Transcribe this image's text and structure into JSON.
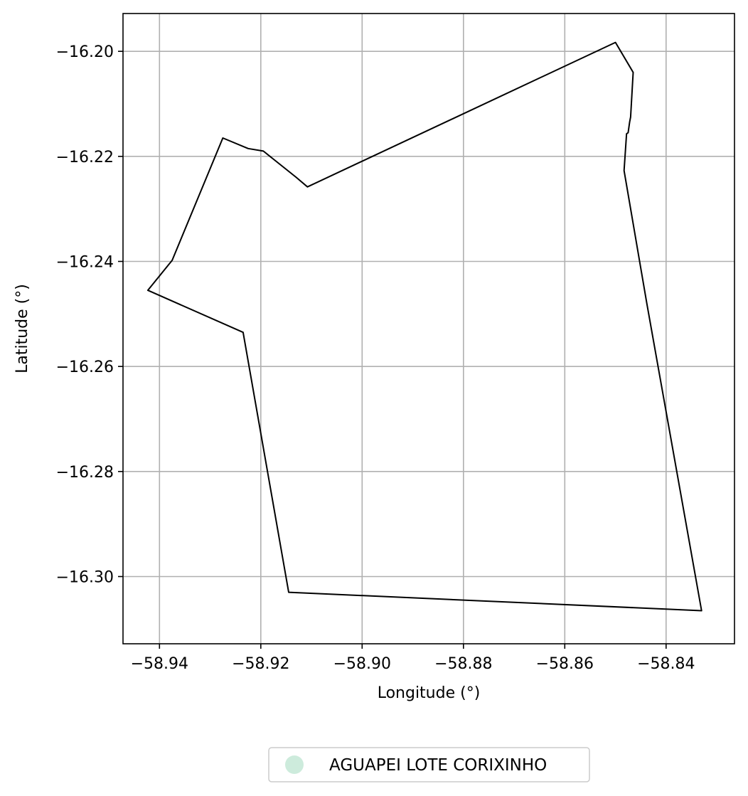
{
  "chart_data": {
    "type": "map",
    "xlabel": "Longitude (°)",
    "ylabel": "Latitude (°)",
    "xlim": [
      -58.9472,
      -58.8265
    ],
    "ylim": [
      -16.3128,
      -16.1928
    ],
    "grid": true,
    "x_ticks": [
      {
        "value": -58.94,
        "label": "−58.94"
      },
      {
        "value": -58.92,
        "label": "−58.92"
      },
      {
        "value": -58.9,
        "label": "−58.90"
      },
      {
        "value": -58.88,
        "label": "−58.88"
      },
      {
        "value": -58.86,
        "label": "−58.86"
      },
      {
        "value": -58.84,
        "label": "−58.84"
      }
    ],
    "y_ticks": [
      {
        "value": -16.2,
        "label": "−16.20"
      },
      {
        "value": -16.22,
        "label": "−16.22"
      },
      {
        "value": -16.24,
        "label": "−16.24"
      },
      {
        "value": -16.26,
        "label": "−16.26"
      },
      {
        "value": -16.28,
        "label": "−16.28"
      },
      {
        "value": -16.3,
        "label": "−16.30"
      }
    ],
    "legend_position": "bottom-center",
    "series": [
      {
        "name": "AGUAPEI LOTE CORIXINHO",
        "legend_color": "#cdebdc",
        "edge_color": "#000000",
        "polygon": [
          [
            -58.9275,
            -16.2165
          ],
          [
            -58.9225,
            -16.2185
          ],
          [
            -58.9195,
            -16.219
          ],
          [
            -58.913,
            -16.224
          ],
          [
            -58.9108,
            -16.2258
          ],
          [
            -58.85,
            -16.1983
          ],
          [
            -58.8465,
            -16.204
          ],
          [
            -58.847,
            -16.2125
          ],
          [
            -58.8472,
            -16.2135
          ],
          [
            -58.8475,
            -16.2155
          ],
          [
            -58.8478,
            -16.2157
          ],
          [
            -58.8483,
            -16.2227
          ],
          [
            -58.8438,
            -16.248
          ],
          [
            -58.833,
            -16.3065
          ],
          [
            -58.9145,
            -16.303
          ],
          [
            -58.9235,
            -16.2535
          ],
          [
            -58.9423,
            -16.2455
          ],
          [
            -58.9375,
            -16.2398
          ],
          [
            -58.9275,
            -16.2165
          ]
        ]
      }
    ]
  }
}
